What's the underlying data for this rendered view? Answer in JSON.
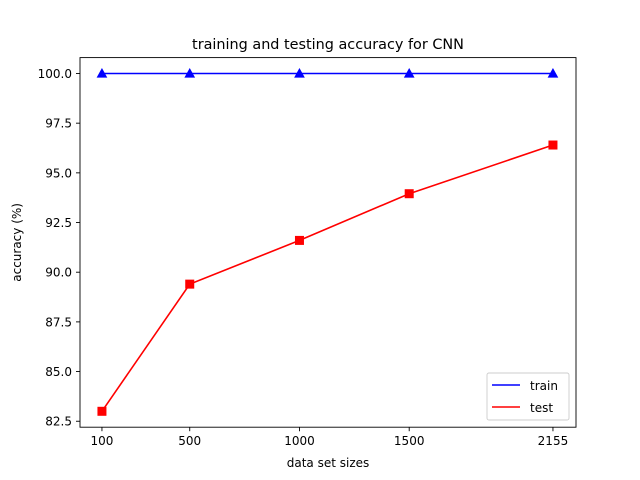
{
  "chart_data": {
    "type": "line",
    "title": "training and testing accuracy for CNN",
    "xlabel": "data set sizes",
    "ylabel": "accuracy (%)",
    "x": [
      100,
      500,
      1000,
      1500,
      2155
    ],
    "xticks": [
      100,
      500,
      1000,
      1500,
      2155
    ],
    "xlim": [
      0,
      2260
    ],
    "ylim": [
      82.2,
      100.8
    ],
    "yticks": [
      82.5,
      85.0,
      87.5,
      90.0,
      92.5,
      95.0,
      97.5,
      100.0
    ],
    "ytick_labels": [
      "82.5",
      "85.0",
      "87.5",
      "90.0",
      "92.5",
      "95.0",
      "97.5",
      "100.0"
    ],
    "grid": false,
    "legend_position": "lower-right",
    "series": [
      {
        "name": "train",
        "color": "#0000ff",
        "marker": "triangle",
        "values": [
          100.0,
          100.0,
          100.0,
          100.0,
          100.0
        ]
      },
      {
        "name": "test",
        "color": "#ff0000",
        "marker": "square",
        "values": [
          83.0,
          89.4,
          91.6,
          93.95,
          96.4
        ]
      }
    ]
  }
}
